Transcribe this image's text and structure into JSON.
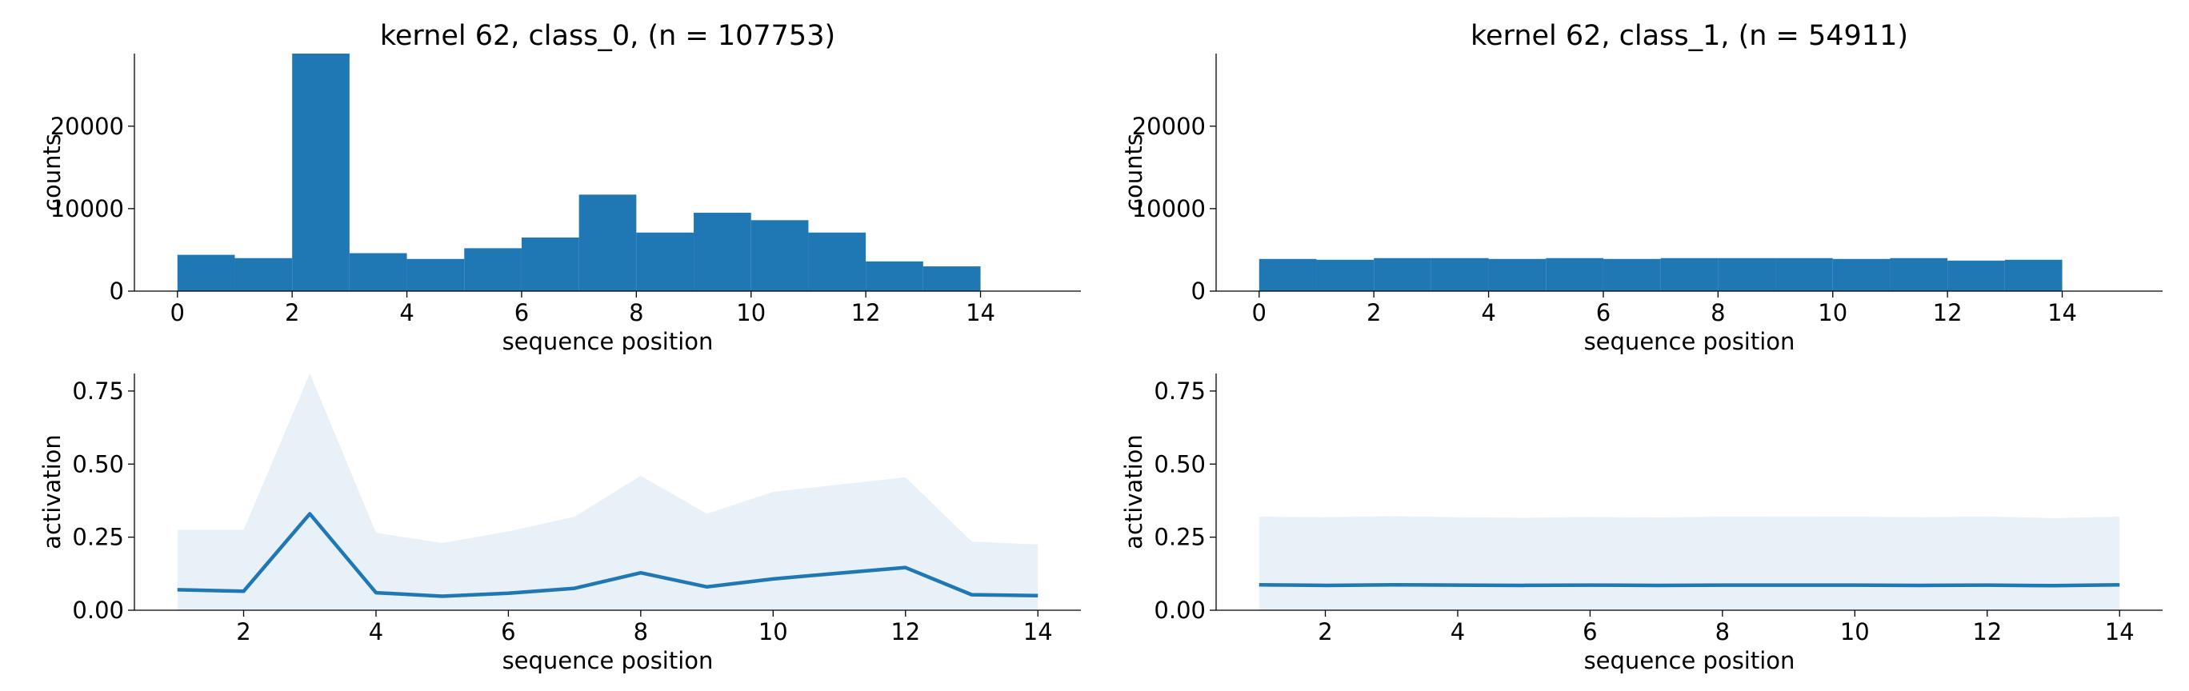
{
  "figure": {
    "background": "#ffffff"
  },
  "chart_data": [
    {
      "type": "bar",
      "title": "kernel 62, class_0, (n = 107753)",
      "xlabel": "sequence position",
      "ylabel": "counts",
      "xlim": [
        -0.75,
        15.75
      ],
      "ylim": [
        0,
        28800
      ],
      "xticks": [
        0,
        2,
        4,
        6,
        8,
        10,
        12,
        14
      ],
      "yticks": [
        0,
        10000,
        20000
      ],
      "bin_edges": [
        0,
        1,
        2,
        3,
        4,
        5,
        6,
        7,
        8,
        9,
        10,
        11,
        12,
        13,
        14
      ],
      "values": [
        4400,
        4000,
        28800,
        4600,
        3900,
        5200,
        6500,
        11700,
        7100,
        9500,
        8600,
        7100,
        3600,
        3000
      ],
      "color": "#1f77b4",
      "grid": false
    },
    {
      "type": "bar",
      "title": "kernel 62, class_1, (n = 54911)",
      "xlabel": "sequence position",
      "ylabel": "counts",
      "xlim": [
        -0.75,
        15.75
      ],
      "ylim": [
        0,
        28800
      ],
      "xticks": [
        0,
        2,
        4,
        6,
        8,
        10,
        12,
        14
      ],
      "yticks": [
        0,
        10000,
        20000
      ],
      "bin_edges": [
        0,
        1,
        2,
        3,
        4,
        5,
        6,
        7,
        8,
        9,
        10,
        11,
        12,
        13,
        14
      ],
      "values": [
        3900,
        3800,
        4000,
        4000,
        3900,
        4000,
        3900,
        4000,
        4000,
        4000,
        3900,
        4000,
        3700,
        3800
      ],
      "color": "#1f77b4",
      "grid": false
    },
    {
      "type": "line",
      "title": "",
      "xlabel": "sequence position",
      "ylabel": "activation",
      "xlim": [
        0.35,
        14.65
      ],
      "ylim": [
        0,
        0.81
      ],
      "xticks": [
        2,
        4,
        6,
        8,
        10,
        12,
        14
      ],
      "yticks": [
        0.0,
        0.25,
        0.5,
        0.75
      ],
      "ytick_labels": [
        "0.00",
        "0.25",
        "0.50",
        "0.75"
      ],
      "x": [
        1,
        2,
        3,
        4,
        5,
        6,
        7,
        8,
        9,
        10,
        11,
        12,
        13,
        14
      ],
      "series": [
        {
          "values": [
            0.07,
            0.065,
            0.33,
            0.06,
            0.048,
            0.058,
            0.075,
            0.128,
            0.08,
            0.107,
            0.127,
            0.146,
            0.053,
            0.05
          ],
          "color": "#1f77b4"
        }
      ],
      "band_upper": [
        0.275,
        0.275,
        0.81,
        0.265,
        0.23,
        0.27,
        0.32,
        0.46,
        0.33,
        0.405,
        0.43,
        0.455,
        0.235,
        0.225
      ],
      "band_lower": [
        0,
        0,
        0,
        0,
        0,
        0,
        0,
        0,
        0,
        0,
        0,
        0,
        0,
        0
      ],
      "band_color": "#e8f0f8",
      "grid": false
    },
    {
      "type": "line",
      "title": "",
      "xlabel": "sequence position",
      "ylabel": "activation",
      "xlim": [
        0.35,
        14.65
      ],
      "ylim": [
        0,
        0.81
      ],
      "xticks": [
        2,
        4,
        6,
        8,
        10,
        12,
        14
      ],
      "yticks": [
        0.0,
        0.25,
        0.5,
        0.75
      ],
      "ytick_labels": [
        "0.00",
        "0.25",
        "0.50",
        "0.75"
      ],
      "x": [
        1,
        2,
        3,
        4,
        5,
        6,
        7,
        8,
        9,
        10,
        11,
        12,
        13,
        14
      ],
      "series": [
        {
          "values": [
            0.087,
            0.085,
            0.087,
            0.086,
            0.085,
            0.086,
            0.085,
            0.086,
            0.086,
            0.086,
            0.085,
            0.086,
            0.084,
            0.087
          ],
          "color": "#1f77b4"
        }
      ],
      "band_upper": [
        0.32,
        0.318,
        0.322,
        0.318,
        0.316,
        0.319,
        0.317,
        0.32,
        0.321,
        0.32,
        0.318,
        0.321,
        0.315,
        0.32
      ],
      "band_lower": [
        0,
        0,
        0,
        0,
        0,
        0,
        0,
        0,
        0,
        0,
        0,
        0,
        0,
        0
      ],
      "band_color": "#e8f0f8",
      "grid": false
    }
  ]
}
